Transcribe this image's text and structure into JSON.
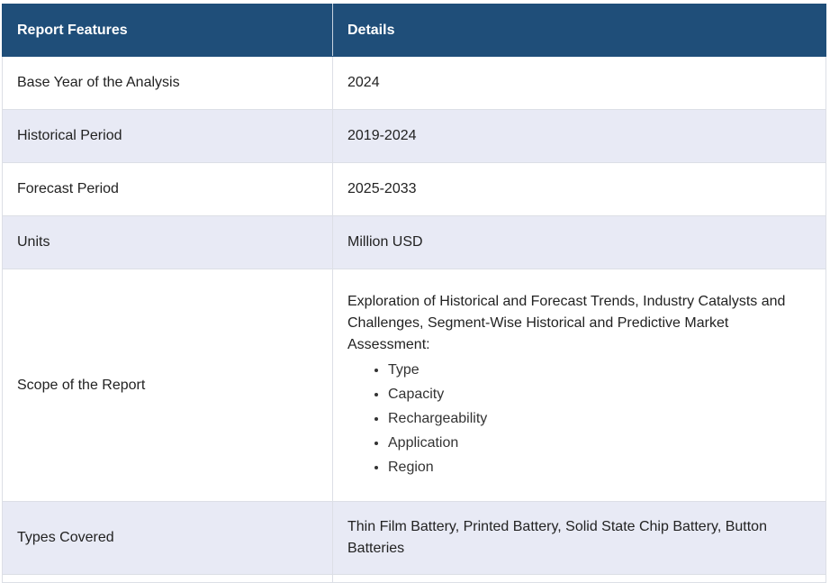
{
  "header": {
    "col1": "Report Features",
    "col2": "Details"
  },
  "rows": [
    {
      "feature": "Base Year of the Analysis",
      "details": "2024"
    },
    {
      "feature": "Historical Period",
      "details": "2019-2024"
    },
    {
      "feature": "Forecast Period",
      "details": "2025-2033"
    },
    {
      "feature": "Units",
      "details": "Million USD"
    }
  ],
  "scope": {
    "feature": "Scope of the Report",
    "intro": "Exploration of Historical and Forecast Trends, Industry Catalysts and Challenges, Segment-Wise Historical and Predictive Market Assessment:",
    "items": [
      "Type",
      "Capacity",
      "Rechargeability",
      "Application",
      "Region"
    ]
  },
  "types": {
    "feature": "Types Covered",
    "details": "Thin Film Battery, Printed Battery, Solid State Chip Battery, Button Batteries"
  }
}
